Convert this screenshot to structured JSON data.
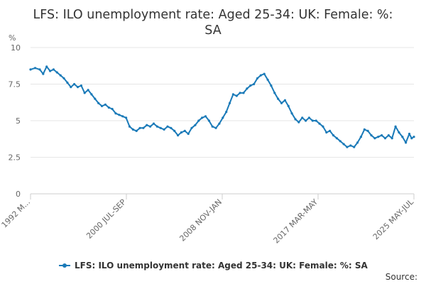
{
  "chart_data": {
    "type": "line",
    "title_line1": "LFS: ILO unemployment rate: Aged 25-34: UK: Female: %:",
    "title_line2": "SA",
    "y_unit": "%",
    "ylim": [
      0,
      10
    ],
    "y_ticks": [
      "0",
      "2.5",
      "5",
      "7.5",
      "10"
    ],
    "x_ticks": [
      "1992 M...",
      "2000 JUL-SEP",
      "2008 NOV-JAN",
      "2017 MAR-MAY",
      "2025 MAY-JUL"
    ],
    "x_range": [
      1992.2,
      2025.5
    ],
    "grid": true,
    "legend_position": "bottom",
    "series": [
      {
        "name": "LFS: ILO unemployment rate: Aged 25-34: UK: Female: %: SA",
        "color": "#1a7ab8",
        "points": [
          [
            1992.2,
            8.5
          ],
          [
            1992.6,
            8.6
          ],
          [
            1993.0,
            8.5
          ],
          [
            1993.3,
            8.2
          ],
          [
            1993.6,
            8.7
          ],
          [
            1993.9,
            8.4
          ],
          [
            1994.2,
            8.5
          ],
          [
            1994.5,
            8.3
          ],
          [
            1994.8,
            8.1
          ],
          [
            1995.1,
            7.9
          ],
          [
            1995.4,
            7.6
          ],
          [
            1995.7,
            7.3
          ],
          [
            1996.0,
            7.5
          ],
          [
            1996.3,
            7.3
          ],
          [
            1996.6,
            7.4
          ],
          [
            1996.9,
            6.9
          ],
          [
            1997.2,
            7.1
          ],
          [
            1997.5,
            6.8
          ],
          [
            1997.8,
            6.5
          ],
          [
            1998.1,
            6.2
          ],
          [
            1998.4,
            6.0
          ],
          [
            1998.7,
            6.1
          ],
          [
            1999.0,
            5.9
          ],
          [
            1999.3,
            5.8
          ],
          [
            1999.6,
            5.5
          ],
          [
            1999.9,
            5.4
          ],
          [
            2000.2,
            5.3
          ],
          [
            2000.5,
            5.2
          ],
          [
            2000.8,
            4.6
          ],
          [
            2001.1,
            4.4
          ],
          [
            2001.4,
            4.3
          ],
          [
            2001.7,
            4.5
          ],
          [
            2002.0,
            4.5
          ],
          [
            2002.3,
            4.7
          ],
          [
            2002.6,
            4.6
          ],
          [
            2002.9,
            4.8
          ],
          [
            2003.2,
            4.6
          ],
          [
            2003.5,
            4.5
          ],
          [
            2003.8,
            4.4
          ],
          [
            2004.1,
            4.6
          ],
          [
            2004.4,
            4.5
          ],
          [
            2004.7,
            4.3
          ],
          [
            2005.0,
            4.0
          ],
          [
            2005.3,
            4.2
          ],
          [
            2005.6,
            4.3
          ],
          [
            2005.9,
            4.1
          ],
          [
            2006.2,
            4.5
          ],
          [
            2006.5,
            4.7
          ],
          [
            2006.8,
            5.0
          ],
          [
            2007.1,
            5.2
          ],
          [
            2007.4,
            5.3
          ],
          [
            2007.7,
            5.0
          ],
          [
            2008.0,
            4.6
          ],
          [
            2008.3,
            4.5
          ],
          [
            2008.6,
            4.8
          ],
          [
            2008.9,
            5.2
          ],
          [
            2009.2,
            5.6
          ],
          [
            2009.5,
            6.2
          ],
          [
            2009.8,
            6.8
          ],
          [
            2010.1,
            6.7
          ],
          [
            2010.4,
            6.9
          ],
          [
            2010.7,
            6.9
          ],
          [
            2011.0,
            7.2
          ],
          [
            2011.3,
            7.4
          ],
          [
            2011.6,
            7.5
          ],
          [
            2011.9,
            7.9
          ],
          [
            2012.2,
            8.1
          ],
          [
            2012.5,
            8.2
          ],
          [
            2012.8,
            7.8
          ],
          [
            2013.1,
            7.4
          ],
          [
            2013.4,
            6.9
          ],
          [
            2013.7,
            6.5
          ],
          [
            2014.0,
            6.2
          ],
          [
            2014.3,
            6.4
          ],
          [
            2014.6,
            6.0
          ],
          [
            2014.9,
            5.5
          ],
          [
            2015.2,
            5.1
          ],
          [
            2015.5,
            4.9
          ],
          [
            2015.8,
            5.2
          ],
          [
            2016.1,
            5.0
          ],
          [
            2016.4,
            5.2
          ],
          [
            2016.7,
            5.0
          ],
          [
            2017.0,
            5.0
          ],
          [
            2017.3,
            4.8
          ],
          [
            2017.6,
            4.6
          ],
          [
            2017.9,
            4.2
          ],
          [
            2018.2,
            4.3
          ],
          [
            2018.5,
            4.0
          ],
          [
            2018.8,
            3.8
          ],
          [
            2019.1,
            3.6
          ],
          [
            2019.4,
            3.4
          ],
          [
            2019.7,
            3.2
          ],
          [
            2020.0,
            3.3
          ],
          [
            2020.3,
            3.2
          ],
          [
            2020.6,
            3.5
          ],
          [
            2020.9,
            3.9
          ],
          [
            2021.2,
            4.4
          ],
          [
            2021.5,
            4.3
          ],
          [
            2021.8,
            4.0
          ],
          [
            2022.1,
            3.8
          ],
          [
            2022.4,
            3.9
          ],
          [
            2022.7,
            4.0
          ],
          [
            2023.0,
            3.8
          ],
          [
            2023.3,
            4.0
          ],
          [
            2023.6,
            3.8
          ],
          [
            2023.9,
            4.6
          ],
          [
            2024.2,
            4.2
          ],
          [
            2024.5,
            3.9
          ],
          [
            2024.8,
            3.5
          ],
          [
            2025.1,
            4.1
          ],
          [
            2025.3,
            3.8
          ],
          [
            2025.5,
            3.9
          ]
        ]
      }
    ],
    "source_label": "Source:"
  }
}
